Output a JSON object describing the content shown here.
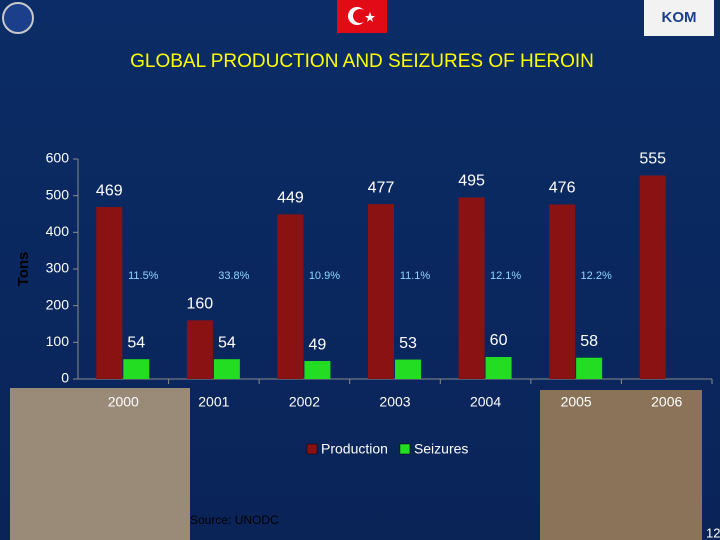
{
  "chart_data": {
    "type": "bar",
    "title": "GLOBAL PRODUCTION AND SEIZURES OF HEROIN",
    "y_label": "Tons",
    "categories": [
      "2000",
      "2001",
      "2002",
      "2003",
      "2004",
      "2005",
      "2006"
    ],
    "series": [
      {
        "name": "Production",
        "color": "#8b1212",
        "values": [
          469,
          160,
          449,
          477,
          495,
          476,
          555
        ]
      },
      {
        "name": "Seizures",
        "color": "#22dd22",
        "values": [
          54,
          54,
          49,
          53,
          60,
          58,
          null
        ]
      }
    ],
    "seizure_rates": [
      "11.5%",
      "33.8%",
      "10.9%",
      "11.1%",
      "12.1%",
      "12.2%"
    ],
    "ylim": [
      0,
      600
    ],
    "yticks": [
      0,
      100,
      200,
      300,
      400,
      500,
      600
    ],
    "grid": false,
    "legend": "bottom",
    "source": "Source: UNODC",
    "page_number": "12"
  }
}
